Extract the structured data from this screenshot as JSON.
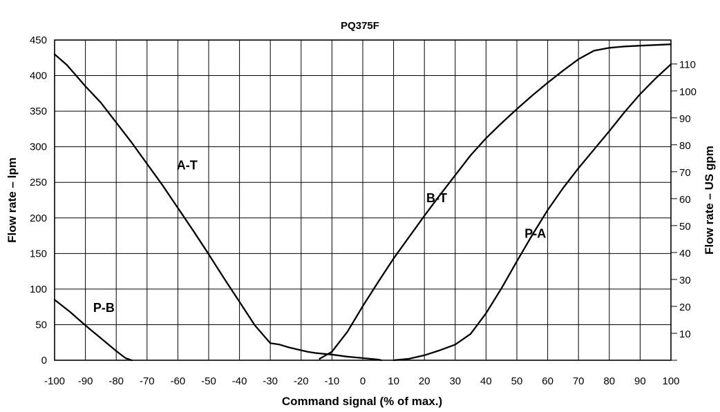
{
  "chart_data": {
    "type": "line",
    "title": "PQ375F",
    "xlabel": "Command signal (% of max.)",
    "ylabel": "Flow rate – lpm",
    "ylabel_right": "Flow rate – US gpm",
    "xlim": [
      -100,
      100
    ],
    "ylim": [
      0,
      450
    ],
    "ylim_right": [
      0,
      118.9
    ],
    "x_ticks": [
      -100,
      -90,
      -80,
      -70,
      -60,
      -50,
      -40,
      -30,
      -20,
      -10,
      0,
      10,
      20,
      30,
      40,
      50,
      60,
      70,
      80,
      90,
      100
    ],
    "y_ticks": [
      0,
      50,
      100,
      150,
      200,
      250,
      300,
      350,
      400,
      450
    ],
    "y_right_ticks": [
      10,
      20,
      30,
      40,
      50,
      60,
      70,
      80,
      90,
      100,
      110
    ],
    "grid": true,
    "series": [
      {
        "name": "A-T",
        "x": [
          -100,
          -96,
          -90,
          -85,
          -80,
          -75,
          -70,
          -65,
          -60,
          -55,
          -50,
          -45,
          -40,
          -35,
          -30,
          -27,
          -24,
          -21,
          -18,
          -15,
          -10,
          -5,
          0,
          5,
          6
        ],
        "y": [
          430,
          415,
          385,
          362,
          334,
          306,
          276,
          246,
          214,
          182,
          149,
          115,
          82,
          49,
          24,
          22,
          18,
          15,
          12,
          10,
          8,
          5,
          3,
          1,
          0
        ]
      },
      {
        "name": "B-T",
        "x": [
          -14,
          -10,
          -5,
          0,
          5,
          10,
          15,
          20,
          25,
          30,
          35,
          40,
          45,
          50,
          55,
          60,
          65,
          70,
          75,
          80,
          85,
          90,
          95,
          100
        ],
        "y": [
          2,
          12,
          40,
          76,
          110,
          143,
          173,
          203,
          232,
          260,
          288,
          312,
          333,
          353,
          372,
          390,
          407,
          423,
          435,
          439,
          441,
          442,
          443,
          444
        ]
      },
      {
        "name": "P-A",
        "x": [
          10,
          15,
          20,
          25,
          30,
          35,
          40,
          45,
          50,
          55,
          60,
          65,
          70,
          75,
          80,
          85,
          90,
          95,
          100
        ],
        "y": [
          0,
          2,
          7,
          14,
          22,
          37,
          66,
          101,
          139,
          176,
          211,
          242,
          270,
          296,
          322,
          349,
          374,
          396,
          416
        ]
      },
      {
        "name": "P-B",
        "x": [
          -100,
          -95,
          -90,
          -85,
          -80,
          -77,
          -75
        ],
        "y": [
          85,
          68,
          49,
          31,
          13,
          3,
          0
        ]
      }
    ]
  }
}
